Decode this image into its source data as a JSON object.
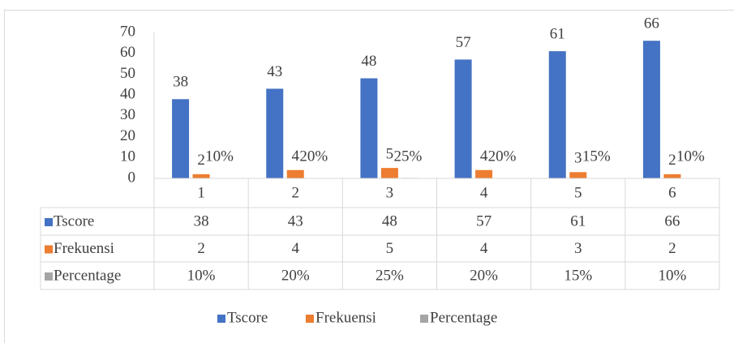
{
  "chart_data": {
    "type": "bar",
    "categories": [
      "1",
      "2",
      "3",
      "4",
      "5",
      "6"
    ],
    "series": [
      {
        "name": "Tscore",
        "color": "#4472c4",
        "values": [
          38,
          43,
          48,
          57,
          61,
          66
        ]
      },
      {
        "name": "Frekuensi",
        "color": "#ed7d31",
        "values": [
          2,
          4,
          5,
          4,
          3,
          2
        ]
      },
      {
        "name": "Percentage",
        "color": "#a5a5a5",
        "values": [
          0.1,
          0.2,
          0.25,
          0.2,
          0.15,
          0.1
        ],
        "value_labels": [
          "10%",
          "20%",
          "25%",
          "20%",
          "15%",
          "10%"
        ]
      }
    ],
    "ylim": [
      0,
      70
    ],
    "yticks": [
      0,
      10,
      20,
      30,
      40,
      50,
      60,
      70
    ],
    "grid": false,
    "legend": "bottom",
    "data_table": true
  }
}
